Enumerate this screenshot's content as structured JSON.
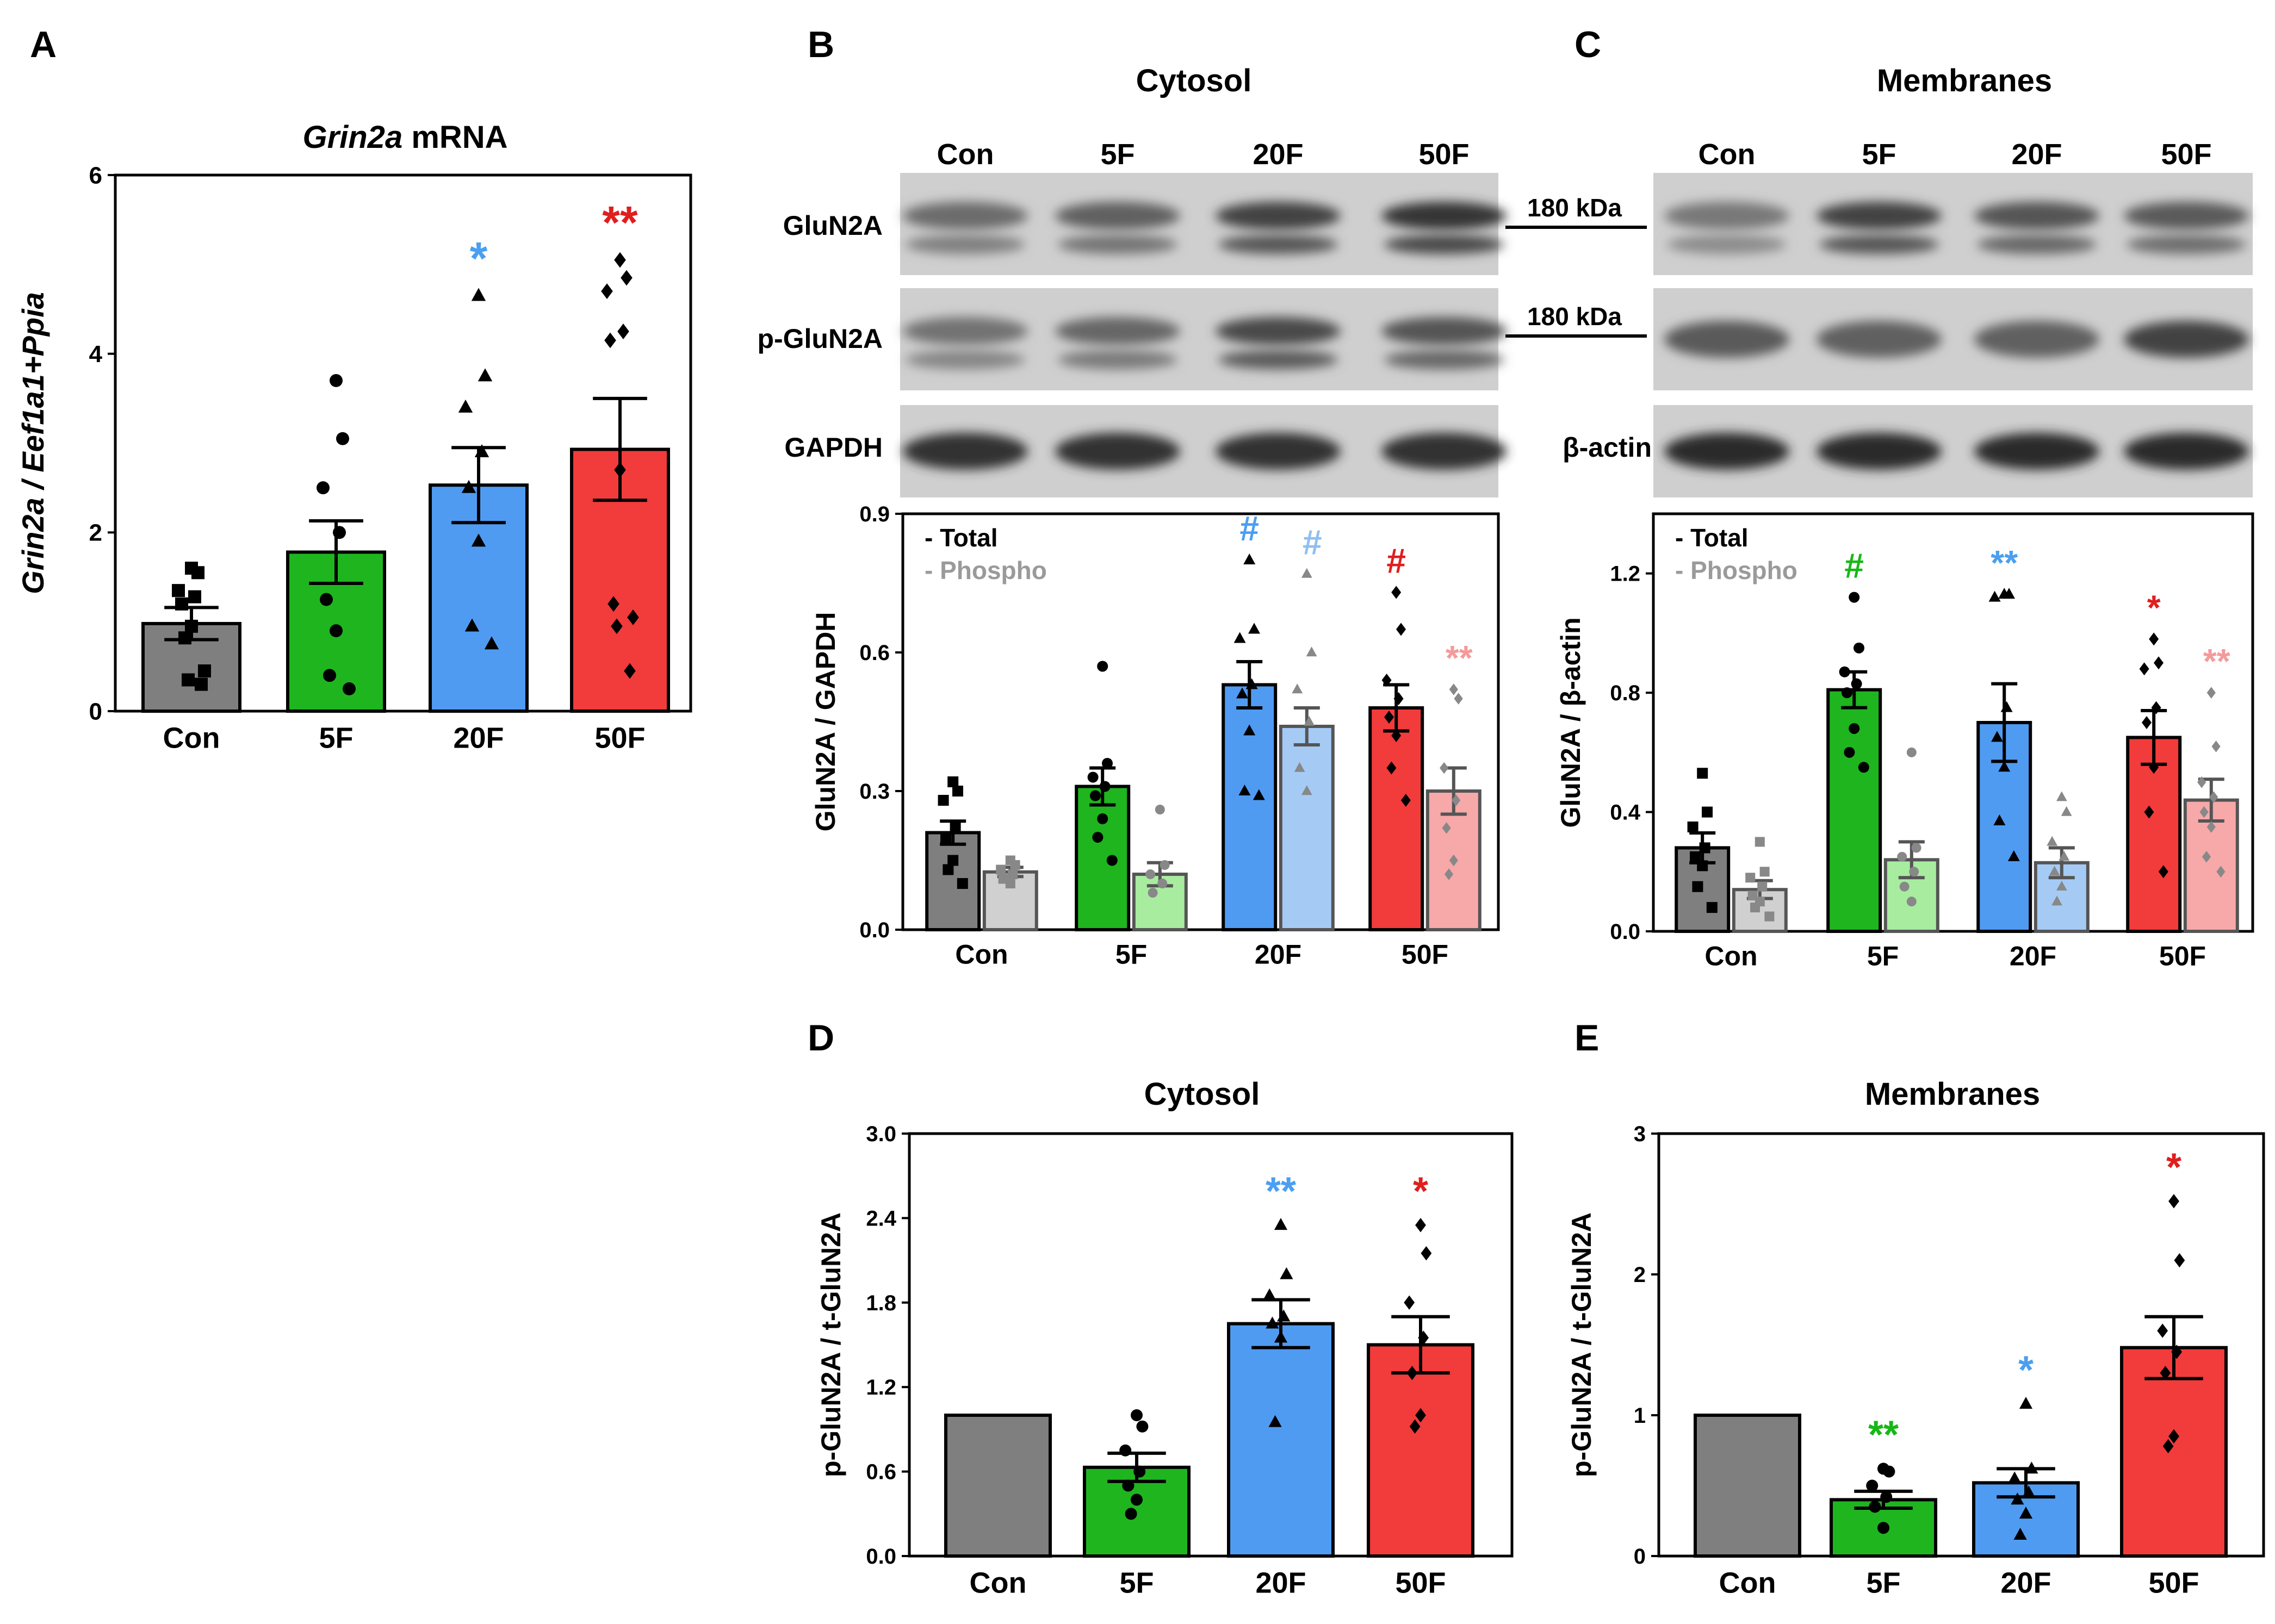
{
  "figure": {
    "panel_letters": [
      "A",
      "B",
      "C",
      "D",
      "E"
    ],
    "panel_B_title": "Cytosol",
    "panel_C_title": "Membranes",
    "blot_lanes": [
      "Con",
      "5F",
      "20F",
      "50F"
    ],
    "blot_rows_B": [
      "GluN2A",
      "p-GluN2A",
      "GAPDH"
    ],
    "blot_rows_C_loading": "β-actin",
    "mw_markers": [
      "180 kDa",
      "180 kDa"
    ],
    "legend": {
      "total": "- Total",
      "phospho": "- Phospho"
    }
  },
  "colors": {
    "con": "#7f7f7f",
    "f5": "#1fb51f",
    "f20": "#4f9bf2",
    "f50": "#f23b3b",
    "con_light": "#d0d0d0",
    "f5_light": "#a8eca0",
    "f20_light": "#a5cbf5",
    "f50_light": "#f7a8a8",
    "sig_f20": "#4a9ff0",
    "sig_f50": "#e01e1e",
    "sig_f5": "#16b816",
    "sig_f20_light": "#8fbff0",
    "sig_f50_light": "#f59a9a"
  },
  "chart_data": [
    {
      "panel": "A",
      "type": "bar",
      "title_italic": "Grin2a",
      "title_rest": " mRNA",
      "ylabel": "Grin2a / Eef1a1+Ppia",
      "categories": [
        "Con",
        "5F",
        "20F",
        "50F"
      ],
      "values": [
        0.98,
        1.78,
        2.53,
        2.93
      ],
      "sem": [
        0.18,
        0.35,
        0.42,
        0.57
      ],
      "ylim": [
        0,
        6
      ],
      "yticks": [
        "0",
        "2",
        "4",
        "6"
      ],
      "significance": [
        "",
        "",
        "*",
        "**"
      ],
      "points": [
        [
          1.6,
          1.55,
          1.35,
          1.28,
          1.2,
          0.95,
          0.82,
          0.45,
          0.35,
          0.3
        ],
        [
          3.7,
          3.05,
          2.5,
          2.0,
          1.25,
          0.9,
          0.4,
          0.25
        ],
        [
          4.65,
          3.75,
          3.4,
          2.9,
          2.5,
          1.9,
          0.95,
          0.75
        ],
        [
          5.05,
          4.85,
          4.7,
          4.25,
          4.15,
          2.7,
          1.2,
          1.05,
          0.95,
          0.45
        ]
      ]
    },
    {
      "panel": "B",
      "type": "bar",
      "ylabel": "GluN2A / GAPDH",
      "categories": [
        "Con",
        "5F",
        "20F",
        "50F"
      ],
      "series": [
        {
          "name": "Total",
          "values": [
            0.21,
            0.31,
            0.53,
            0.48
          ],
          "sem": [
            0.025,
            0.04,
            0.05,
            0.05
          ],
          "points": [
            [
              0.32,
              0.3,
              0.28,
              0.22,
              0.2,
              0.15,
              0.13,
              0.1
            ],
            [
              0.57,
              0.36,
              0.33,
              0.31,
              0.29,
              0.24,
              0.2,
              0.15
            ],
            [
              0.8,
              0.65,
              0.63,
              0.53,
              0.51,
              0.43,
              0.3,
              0.29
            ],
            [
              0.73,
              0.65,
              0.54,
              0.5,
              0.46,
              0.42,
              0.35,
              0.28
            ]
          ]
        },
        {
          "name": "Phospho",
          "values": [
            0.125,
            0.12,
            0.44,
            0.3
          ],
          "sem": [
            0.01,
            0.025,
            0.04,
            0.05
          ],
          "points": [
            [
              0.15,
              0.14,
              0.13,
              0.12,
              0.11,
              0.1
            ],
            [
              0.26,
              0.14,
              0.12,
              0.1,
              0.08
            ],
            [
              0.77,
              0.6,
              0.52,
              0.45,
              0.35,
              0.3
            ],
            [
              0.52,
              0.5,
              0.35,
              0.28,
              0.22,
              0.15,
              0.12
            ]
          ]
        }
      ],
      "ylim": [
        0,
        0.9
      ],
      "yticks": [
        "0.0",
        "0.3",
        "0.6",
        "0.9"
      ],
      "significance_total": [
        "",
        "",
        "#",
        "#"
      ],
      "significance_phospho": [
        "",
        "",
        "#",
        "**"
      ]
    },
    {
      "panel": "C",
      "type": "bar",
      "ylabel": "GluN2A / β-actin",
      "categories": [
        "Con",
        "5F",
        "20F",
        "50F"
      ],
      "series": [
        {
          "name": "Total",
          "values": [
            0.28,
            0.81,
            0.7,
            0.65
          ],
          "sem": [
            0.05,
            0.06,
            0.13,
            0.09
          ],
          "points": [
            [
              0.53,
              0.4,
              0.35,
              0.28,
              0.25,
              0.22,
              0.15,
              0.08
            ],
            [
              1.12,
              0.95,
              0.87,
              0.83,
              0.8,
              0.68,
              0.6,
              0.55
            ],
            [
              1.13,
              1.13,
              1.12,
              0.75,
              0.65,
              0.55,
              0.37,
              0.25
            ],
            [
              0.98,
              0.9,
              0.88,
              0.75,
              0.7,
              0.55,
              0.4,
              0.2
            ]
          ]
        },
        {
          "name": "Phospho",
          "values": [
            0.14,
            0.24,
            0.23,
            0.44
          ],
          "sem": [
            0.03,
            0.06,
            0.05,
            0.07
          ],
          "points": [
            [
              0.3,
              0.2,
              0.18,
              0.15,
              0.12,
              0.1,
              0.08,
              0.05
            ],
            [
              0.6,
              0.28,
              0.25,
              0.2,
              0.15,
              0.1
            ],
            [
              0.45,
              0.4,
              0.3,
              0.25,
              0.2,
              0.15,
              0.1
            ],
            [
              0.8,
              0.62,
              0.5,
              0.45,
              0.4,
              0.35,
              0.25,
              0.2
            ]
          ]
        }
      ],
      "ylim": [
        0,
        1.4
      ],
      "yticks": [
        "0.0",
        "0.4",
        "0.8",
        "1.2"
      ],
      "significance_total": [
        "",
        "#",
        "**",
        "*"
      ],
      "significance_phospho": [
        "",
        "",
        "",
        "**"
      ]
    },
    {
      "panel": "D",
      "type": "bar",
      "title": "Cytosol",
      "ylabel": "p-GluN2A / t-GluN2A",
      "categories": [
        "Con",
        "5F",
        "20F",
        "50F"
      ],
      "values": [
        1.0,
        0.63,
        1.65,
        1.5
      ],
      "sem": [
        0,
        0.1,
        0.17,
        0.2
      ],
      "ylim": [
        0,
        3.0
      ],
      "yticks": [
        "0.0",
        "0.6",
        "1.2",
        "1.8",
        "2.4",
        "3.0"
      ],
      "significance": [
        "",
        "",
        "**",
        "*"
      ],
      "points": [
        [],
        [
          1.0,
          0.92,
          0.75,
          0.6,
          0.5,
          0.4,
          0.3
        ],
        [
          2.35,
          2.0,
          1.85,
          1.7,
          1.65,
          1.55,
          0.95
        ],
        [
          2.35,
          2.15,
          1.8,
          1.55,
          1.3,
          1.0,
          0.92
        ]
      ]
    },
    {
      "panel": "E",
      "type": "bar",
      "title": "Membranes",
      "ylabel": "p-GluN2A / t-GluN2A",
      "categories": [
        "Con",
        "5F",
        "20F",
        "50F"
      ],
      "values": [
        1.0,
        0.4,
        0.52,
        1.48
      ],
      "sem": [
        0,
        0.06,
        0.1,
        0.22
      ],
      "ylim": [
        0,
        3
      ],
      "yticks": [
        "0",
        "1",
        "2",
        "3"
      ],
      "significance": [
        "",
        "**",
        "*",
        "*"
      ],
      "points": [
        [],
        [
          0.62,
          0.6,
          0.5,
          0.42,
          0.35,
          0.2
        ],
        [
          1.08,
          0.62,
          0.55,
          0.45,
          0.4,
          0.3,
          0.15
        ],
        [
          2.52,
          2.1,
          1.6,
          1.45,
          1.3,
          0.85,
          0.78
        ]
      ]
    }
  ]
}
